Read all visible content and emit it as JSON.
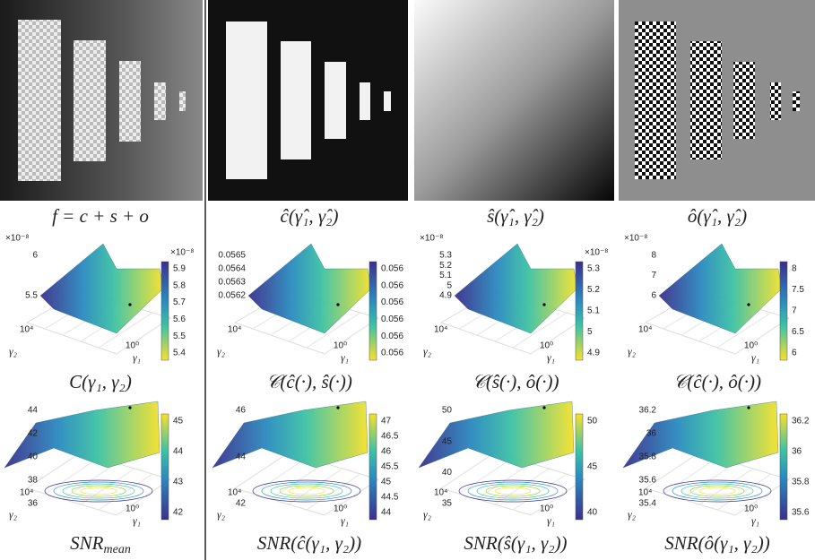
{
  "images": [
    {
      "caption": "f = c + s + o"
    },
    {
      "caption": "ĉ(γ̂₁, γ̂₂)"
    },
    {
      "caption": "ŝ(γ̂₁, γ̂₂)"
    },
    {
      "caption": "ô(γ̂₁, γ̂₂)"
    }
  ],
  "cost_plots": [
    {
      "caption": "C(γ₁, γ₂)",
      "exponent": "×10⁻⁸",
      "z_ticks": [
        "6",
        "5.5"
      ],
      "colorbar_exponent": "×10⁻⁸",
      "colorbar_ticks": [
        "5.9",
        "5.8",
        "5.7",
        "5.6",
        "5.5",
        "5.4"
      ],
      "y_tick": "10⁴",
      "x_tick": "10⁰",
      "y_label": "γ₂",
      "x_label": "γ₁"
    },
    {
      "caption": "𝒞(ĉ(·), ŝ(·))",
      "z_ticks": [
        "0.0565",
        "0.0564",
        "0.0563",
        "0.0562"
      ],
      "colorbar_ticks": [
        "0.056",
        "0.056",
        "0.056",
        "0.056",
        "0.056",
        "0.056"
      ],
      "y_tick": "10⁴",
      "x_tick": "10⁰",
      "y_label": "γ₂",
      "x_label": "γ₁"
    },
    {
      "caption": "𝒞(ŝ(·), ô(·))",
      "exponent": "×10⁻⁸",
      "z_ticks": [
        "5.3",
        "5.2",
        "5.1",
        "5",
        "4.9"
      ],
      "colorbar_exponent": "×10⁻⁸",
      "colorbar_ticks": [
        "5.3",
        "5.2",
        "5.1",
        "5",
        "4.9"
      ],
      "y_tick": "10⁴",
      "x_tick": "10⁰",
      "y_label": "γ₂",
      "x_label": "γ₁"
    },
    {
      "caption": "𝒞(ĉ(·), ô(·))",
      "exponent": "×10⁻⁸",
      "z_ticks": [
        "8",
        "7",
        "6"
      ],
      "colorbar_ticks": [
        "8",
        "7.5",
        "7",
        "6.5",
        "6"
      ],
      "y_tick": "10⁴",
      "x_tick": "10⁰",
      "y_label": "γ₂",
      "x_label": "γ₁"
    }
  ],
  "snr_plots": [
    {
      "caption": "SNR",
      "caption_sub": "mean",
      "z_ticks": [
        "44",
        "42",
        "40",
        "38",
        "36"
      ],
      "colorbar_ticks": [
        "45",
        "44",
        "43",
        "42"
      ],
      "y_tick": "10⁴",
      "x_tick": "10⁰",
      "y_label": "γ₂",
      "x_label": "γ₁"
    },
    {
      "caption": "SNR(ĉ(γ₁, γ₂))",
      "z_ticks": [
        "46",
        "44",
        "42"
      ],
      "colorbar_ticks": [
        "47",
        "46.5",
        "46",
        "45.5",
        "45",
        "44.5",
        "44"
      ],
      "y_tick": "10⁴",
      "x_tick": "10⁰",
      "y_label": "γ₂",
      "x_label": "γ₁"
    },
    {
      "caption": "SNR(ŝ(γ₁, γ₂))",
      "z_ticks": [
        "50",
        "45",
        "40",
        "35"
      ],
      "colorbar_ticks": [
        "50",
        "45",
        "40"
      ],
      "y_tick": "10⁴",
      "x_tick": "10⁰",
      "y_label": "γ₂",
      "x_label": "γ₁"
    },
    {
      "caption": "SNR(ô(γ₁, γ₂))",
      "z_ticks": [
        "36.2",
        "36",
        "35.8",
        "35.6",
        "35.4"
      ],
      "colorbar_ticks": [
        "36.2",
        "36",
        "35.8",
        "35.6"
      ],
      "y_tick": "10⁴",
      "x_tick": "10⁰",
      "y_label": "γ₂",
      "x_label": "γ₁"
    }
  ]
}
